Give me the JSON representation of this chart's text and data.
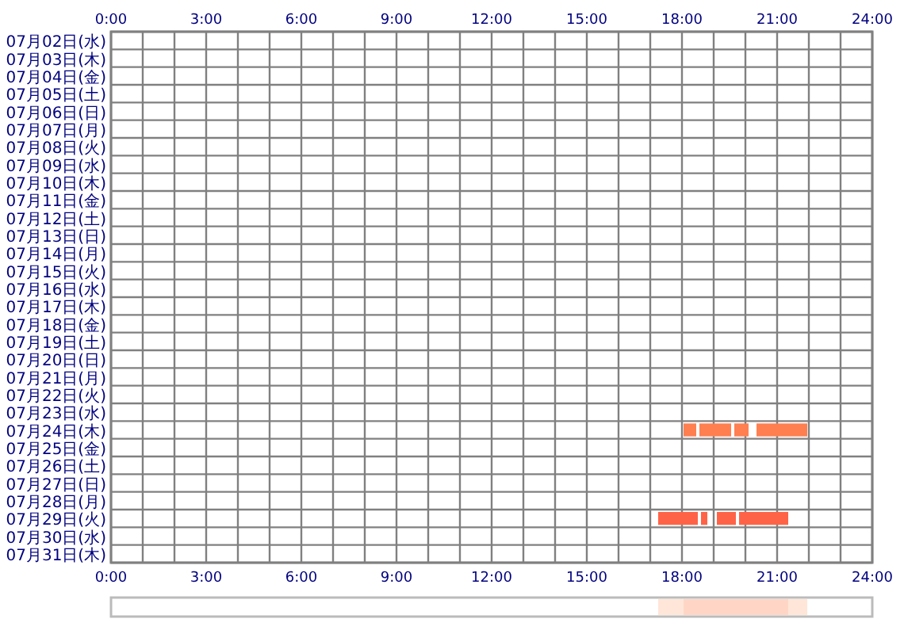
{
  "chart_data": [
    {
      "type": "bar",
      "orientation": "horizontal",
      "grid": true,
      "categories": [
        "07月02日(水)",
        "07月03日(木)",
        "07月04日(金)",
        "07月05日(土)",
        "07月06日(日)",
        "07月07日(月)",
        "07月08日(火)",
        "07月09日(水)",
        "07月10日(木)",
        "07月11日(金)",
        "07月12日(土)",
        "07月13日(日)",
        "07月14日(月)",
        "07月15日(火)",
        "07月16日(水)",
        "07月17日(木)",
        "07月18日(金)",
        "07月19日(土)",
        "07月20日(日)",
        "07月21日(月)",
        "07月22日(火)",
        "07月23日(水)",
        "07月24日(木)",
        "07月25日(金)",
        "07月26日(土)",
        "07月27日(日)",
        "07月28日(月)",
        "07月29日(火)",
        "07月30日(水)",
        "07月31日(木)"
      ],
      "xlim": [
        0,
        24
      ],
      "xticks": [
        {
          "value": 0,
          "label": "0:00"
        },
        {
          "value": 1,
          "label": null
        },
        {
          "value": 2,
          "label": null
        },
        {
          "value": 3,
          "label": "3:00"
        },
        {
          "value": 4,
          "label": null
        },
        {
          "value": 5,
          "label": null
        },
        {
          "value": 6,
          "label": "6:00"
        },
        {
          "value": 7,
          "label": null
        },
        {
          "value": 8,
          "label": null
        },
        {
          "value": 9,
          "label": "9:00"
        },
        {
          "value": 10,
          "label": null
        },
        {
          "value": 11,
          "label": null
        },
        {
          "value": 12,
          "label": "12:00"
        },
        {
          "value": 13,
          "label": null
        },
        {
          "value": 14,
          "label": null
        },
        {
          "value": 15,
          "label": "15:00"
        },
        {
          "value": 16,
          "label": null
        },
        {
          "value": 17,
          "label": null
        },
        {
          "value": 18,
          "label": "18:00"
        },
        {
          "value": 19,
          "label": null
        },
        {
          "value": 20,
          "label": null
        },
        {
          "value": 21,
          "label": "21:00"
        },
        {
          "value": 22,
          "label": null
        },
        {
          "value": 23,
          "label": null
        },
        {
          "value": 24,
          "label": "24:00"
        }
      ],
      "x2lim": [
        0,
        24
      ],
      "x2ticks": [
        {
          "value": 0,
          "label": "0:00"
        },
        {
          "value": 3,
          "label": "3:00"
        },
        {
          "value": 6,
          "label": "6:00"
        },
        {
          "value": 9,
          "label": "9:00"
        },
        {
          "value": 12,
          "label": "12:00"
        },
        {
          "value": 15,
          "label": "15:00"
        },
        {
          "value": 18,
          "label": "18:00"
        },
        {
          "value": 21,
          "label": "21:00"
        },
        {
          "value": 24,
          "label": "24:00"
        }
      ],
      "series": [
        {
          "base": [
            null,
            null,
            null,
            null,
            null,
            null,
            null,
            null,
            null,
            null,
            null,
            null,
            null,
            null,
            null,
            null,
            null,
            null,
            null,
            null,
            null,
            null,
            18.05,
            null,
            null,
            null,
            null,
            17.25,
            null,
            null
          ],
          "values": [
            null,
            null,
            null,
            null,
            null,
            null,
            null,
            null,
            null,
            null,
            null,
            null,
            null,
            null,
            null,
            null,
            null,
            null,
            null,
            null,
            null,
            null,
            0.4,
            null,
            null,
            null,
            null,
            1.25,
            null,
            null
          ],
          "colors": [
            null,
            null,
            null,
            null,
            null,
            null,
            null,
            null,
            null,
            null,
            null,
            null,
            null,
            null,
            null,
            null,
            null,
            null,
            null,
            null,
            null,
            null,
            "#ff7f50",
            null,
            null,
            null,
            null,
            "#ff6347",
            null,
            null
          ]
        },
        {
          "base": [
            null,
            null,
            null,
            null,
            null,
            null,
            null,
            null,
            null,
            null,
            null,
            null,
            null,
            null,
            null,
            null,
            null,
            null,
            null,
            null,
            null,
            null,
            18.55,
            null,
            null,
            null,
            null,
            18.6,
            null,
            null
          ],
          "values": [
            null,
            null,
            null,
            null,
            null,
            null,
            null,
            null,
            null,
            null,
            null,
            null,
            null,
            null,
            null,
            null,
            null,
            null,
            null,
            null,
            null,
            null,
            1,
            null,
            null,
            null,
            null,
            0.2,
            null,
            null
          ],
          "colors": [
            null,
            null,
            null,
            null,
            null,
            null,
            null,
            null,
            null,
            null,
            null,
            null,
            null,
            null,
            null,
            null,
            null,
            null,
            null,
            null,
            null,
            null,
            "#ff7f50",
            null,
            null,
            null,
            null,
            "#ff6347",
            null,
            null
          ]
        },
        {
          "base": [
            null,
            null,
            null,
            null,
            null,
            null,
            null,
            null,
            null,
            null,
            null,
            null,
            null,
            null,
            null,
            null,
            null,
            null,
            null,
            null,
            null,
            null,
            19.65,
            null,
            null,
            null,
            null,
            19.1,
            null,
            null
          ],
          "values": [
            null,
            null,
            null,
            null,
            null,
            null,
            null,
            null,
            null,
            null,
            null,
            null,
            null,
            null,
            null,
            null,
            null,
            null,
            null,
            null,
            null,
            null,
            0.45,
            null,
            null,
            null,
            null,
            0.6,
            null,
            null
          ],
          "colors": [
            null,
            null,
            null,
            null,
            null,
            null,
            null,
            null,
            null,
            null,
            null,
            null,
            null,
            null,
            null,
            null,
            null,
            null,
            null,
            null,
            null,
            null,
            "#ff7f50",
            null,
            null,
            null,
            null,
            "#ff6347",
            null,
            null
          ]
        },
        {
          "base": [
            null,
            null,
            null,
            null,
            null,
            null,
            null,
            null,
            null,
            null,
            null,
            null,
            null,
            null,
            null,
            null,
            null,
            null,
            null,
            null,
            null,
            null,
            20.35,
            null,
            null,
            null,
            null,
            19.8,
            null,
            null
          ],
          "values": [
            null,
            null,
            null,
            null,
            null,
            null,
            null,
            null,
            null,
            null,
            null,
            null,
            null,
            null,
            null,
            null,
            null,
            null,
            null,
            null,
            null,
            null,
            1.6,
            null,
            null,
            null,
            null,
            1.55,
            null,
            null
          ],
          "colors": [
            null,
            null,
            null,
            null,
            null,
            null,
            null,
            null,
            null,
            null,
            null,
            null,
            null,
            null,
            null,
            null,
            null,
            null,
            null,
            null,
            null,
            null,
            "#ff7f50",
            null,
            null,
            null,
            null,
            "#ff6347",
            null,
            null
          ]
        }
      ]
    },
    {
      "type": "bar",
      "orientation": "horizontal",
      "grid": false,
      "categories": [
        null
      ],
      "xlim": [
        0,
        24
      ],
      "series": [
        {
          "base": [
            17.25
          ],
          "values": [
            0.8
          ],
          "color": "#ffe6d8"
        },
        {
          "base": [
            18.05
          ],
          "values": [
            3.3
          ],
          "color": "#ffd6c6"
        },
        {
          "base": [
            21.35
          ],
          "values": [
            0.6
          ],
          "color": "#ffe6d8"
        }
      ]
    }
  ]
}
